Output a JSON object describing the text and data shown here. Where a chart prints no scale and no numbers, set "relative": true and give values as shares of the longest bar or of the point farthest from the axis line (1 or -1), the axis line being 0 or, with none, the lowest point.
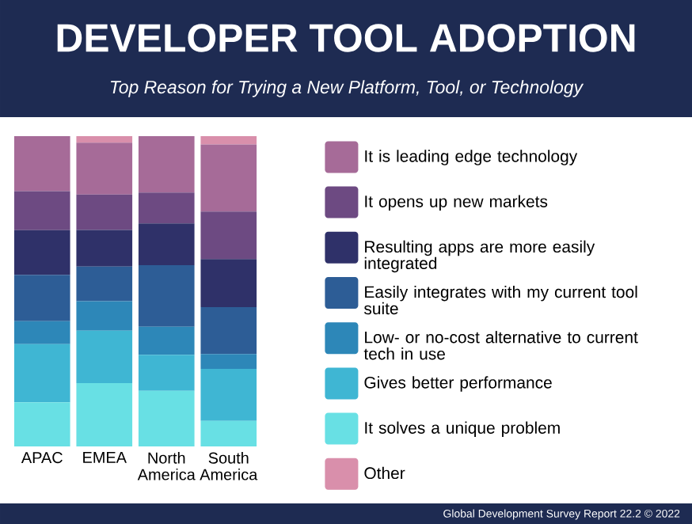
{
  "chart_data": {
    "type": "bar",
    "title": "DEVELOPER TOOL ADOPTION",
    "subtitle": "Top Reason for Trying a New Platform, Tool, or Technology",
    "categories": [
      "APAC",
      "EMEA",
      "North America",
      "South America"
    ],
    "stacked": true,
    "relative": true,
    "legend": "right",
    "series": [
      {
        "name": "It solves a unique problem",
        "color": "#68e0e4",
        "values": [
          0.142,
          0.204,
          0.179,
          0.082
        ]
      },
      {
        "name": "Gives better performance",
        "color": "#3fb6d3",
        "values": [
          0.188,
          0.169,
          0.116,
          0.168
        ]
      },
      {
        "name": "Low- or no-cost alternative to current tech in use",
        "color": "#2d87b8",
        "values": [
          0.074,
          0.095,
          0.091,
          0.048
        ]
      },
      {
        "name": "Easily integrates with my current tool suite",
        "color": "#2d5d96",
        "values": [
          0.149,
          0.112,
          0.198,
          0.151
        ]
      },
      {
        "name": "Resulting apps are more easily integrated",
        "color": "#2f3169",
        "values": [
          0.144,
          0.118,
          0.135,
          0.155
        ]
      },
      {
        "name": "It opens up new markets",
        "color": "#6d4a82",
        "values": [
          0.126,
          0.114,
          0.099,
          0.153
        ]
      },
      {
        "name": "It is leading edge technology",
        "color": "#a66b98",
        "values": [
          0.177,
          0.167,
          0.182,
          0.216
        ]
      },
      {
        "name": "Other",
        "color": "#d98fab",
        "values": [
          0,
          0.021,
          0,
          0.027
        ]
      }
    ],
    "annotations": [
      "Global Development Survey Report 22.2 © 2022"
    ]
  }
}
